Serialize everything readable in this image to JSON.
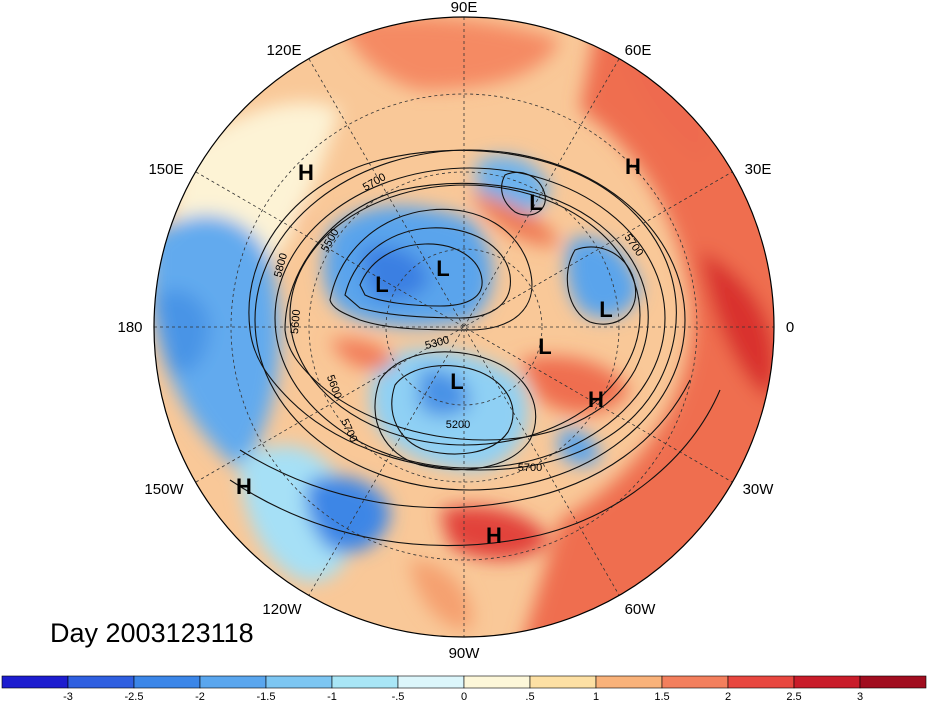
{
  "title": "Day 2003123118",
  "projection": "north-polar-stereographic",
  "longitude_labels": [
    {
      "lon": "90E"
    },
    {
      "lon": "60E"
    },
    {
      "lon": "30E"
    },
    {
      "lon": "0"
    },
    {
      "lon": "30W"
    },
    {
      "lon": "60W"
    },
    {
      "lon": "90W"
    },
    {
      "lon": "120W"
    },
    {
      "lon": "150W"
    },
    {
      "lon": "180"
    },
    {
      "lon": "150E"
    },
    {
      "lon": "120E"
    }
  ],
  "pressure_systems": [
    {
      "type": "H",
      "label": "H"
    },
    {
      "type": "H",
      "label": "H"
    },
    {
      "type": "L",
      "label": "L"
    },
    {
      "type": "L",
      "label": "L"
    },
    {
      "type": "L",
      "label": "L"
    },
    {
      "type": "L",
      "label": "L"
    },
    {
      "type": "L",
      "label": "L"
    },
    {
      "type": "L",
      "label": "L"
    },
    {
      "type": "H",
      "label": "H"
    },
    {
      "type": "H",
      "label": "H"
    },
    {
      "type": "H",
      "label": "H"
    }
  ],
  "contour_labels": [
    "5700",
    "5500",
    "5800",
    "5600",
    "5300",
    "5600",
    "5700",
    "5200",
    "5700",
    "5700"
  ],
  "colorbar": {
    "ticks": [
      "-3",
      "-2.5",
      "-2",
      "-1.5",
      "-1",
      "-.5",
      "0",
      ".5",
      "1",
      "1.5",
      "2",
      "2.5",
      "3"
    ],
    "colors": [
      "#1d1dcf",
      "#2f5fe0",
      "#3b86e8",
      "#5aa6ee",
      "#7dc6f2",
      "#a9e6f6",
      "#dcf6fb",
      "#fdf7d9",
      "#fde0a4",
      "#f9b27a",
      "#f37f5d",
      "#e8473f",
      "#c91c2a",
      "#a10d1f"
    ]
  }
}
